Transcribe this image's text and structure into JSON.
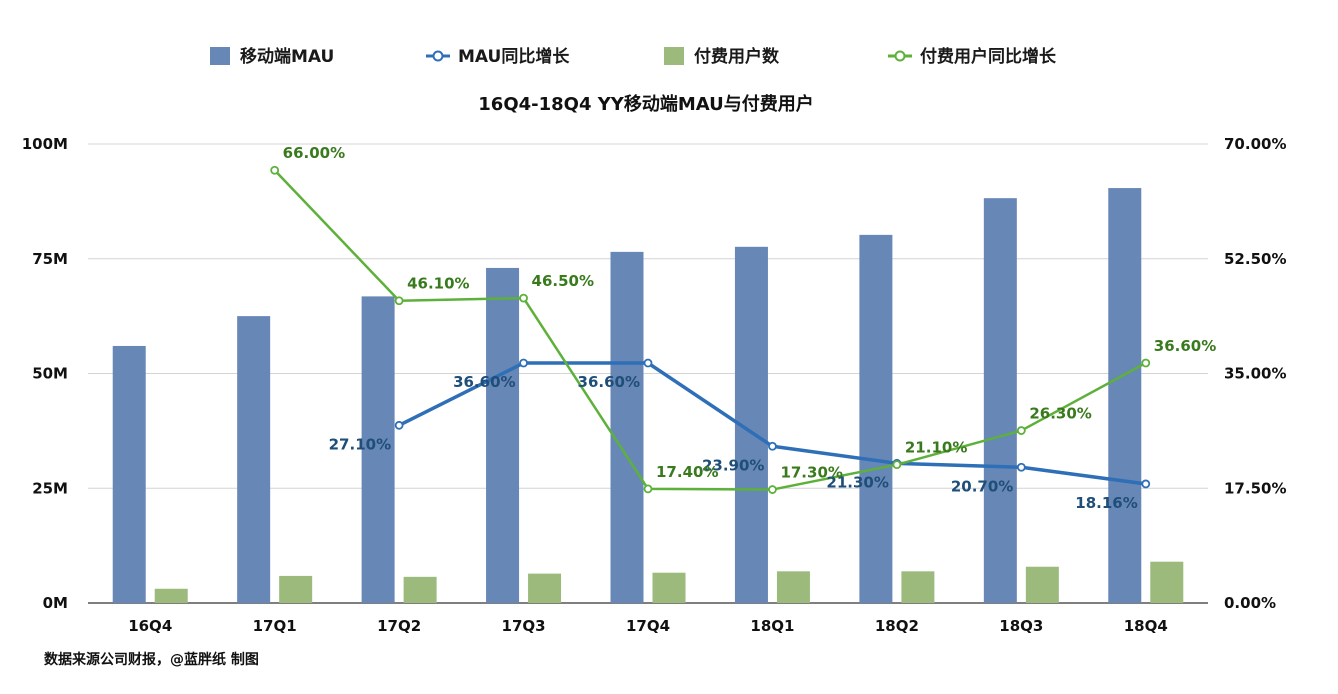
{
  "chart_data": {
    "type": "bar",
    "title": "16Q4-18Q4 YY移动端MAU与付费用户",
    "source": "数据来源公司财报，@蓝胖纸 制图",
    "categories": [
      "16Q4",
      "17Q1",
      "17Q2",
      "17Q3",
      "17Q4",
      "18Q1",
      "18Q2",
      "18Q3",
      "18Q4"
    ],
    "y_left": {
      "ticks": [
        "0M",
        "25M",
        "50M",
        "75M",
        "100M"
      ],
      "range": [
        0,
        100
      ]
    },
    "y_right": {
      "ticks": [
        "0.00%",
        "17.50%",
        "35.00%",
        "52.50%",
        "70.00%"
      ],
      "range": [
        0,
        70
      ]
    },
    "grid": true,
    "legend_position": "top",
    "colors": {
      "mau_bar": "#6787b6",
      "paid_bar": "#9bba7c",
      "mau_line": "#2e6fb7",
      "paid_line": "#5db13a",
      "mau_label": "#1f4e79",
      "paid_label": "#3a7a1e"
    },
    "series": [
      {
        "name": "移动端MAU",
        "type": "bar",
        "axis": "left",
        "values": [
          56,
          62.5,
          66.8,
          73,
          76.5,
          77.6,
          80.2,
          88.2,
          90.4
        ]
      },
      {
        "name": "MAU同比增长",
        "type": "line",
        "axis": "right",
        "values": [
          null,
          null,
          27.1,
          36.6,
          36.6,
          23.9,
          21.3,
          20.7,
          18.16
        ],
        "labels": [
          null,
          null,
          "27.10%",
          "36.60%",
          "36.60%",
          "23.90%",
          "21.30%",
          "20.70%",
          "18.16%"
        ]
      },
      {
        "name": "付费用户数",
        "type": "bar",
        "axis": "left",
        "values": [
          3.1,
          5.9,
          5.7,
          6.4,
          6.6,
          6.9,
          6.9,
          7.9,
          9.0
        ]
      },
      {
        "name": "付费用户同比增长",
        "type": "line",
        "axis": "right",
        "values": [
          null,
          66.0,
          46.1,
          46.5,
          17.4,
          17.3,
          21.1,
          26.3,
          36.6
        ],
        "labels": [
          null,
          "66.00%",
          "46.10%",
          "46.50%",
          "17.40%",
          "17.30%",
          "21.10%",
          "26.30%",
          "36.60%"
        ]
      }
    ]
  }
}
